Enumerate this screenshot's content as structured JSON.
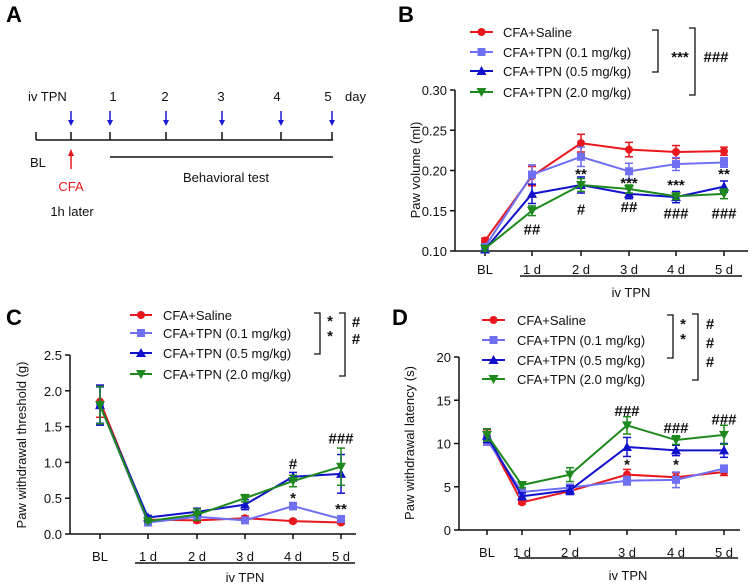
{
  "panels": {
    "a": "A",
    "b": "B",
    "c": "C",
    "d": "D"
  },
  "timeline": {
    "iv_label": "iv TPN",
    "days": [
      "1",
      "2",
      "3",
      "4",
      "5"
    ],
    "day_unit": "day",
    "bl": "BL",
    "cfa": "CFA",
    "cfa_note": "1h later",
    "behavioral": "Behavioral test",
    "colors": {
      "injection_arrow": "#1a1ad6",
      "cfa": "#e8181e"
    }
  },
  "chart_data": [
    {
      "id": "B",
      "type": "line",
      "ylabel": "Paw volume (ml)",
      "xlabel": "iv TPN",
      "categories": [
        "BL",
        "1 d",
        "2 d",
        "3 d",
        "4 d",
        "5 d"
      ],
      "ylim": [
        0.1,
        0.3
      ],
      "yticks": [
        "0.10",
        "0.15",
        "0.20",
        "0.25",
        "0.30"
      ],
      "series": [
        {
          "name": "CFA+Saline",
          "color": "#e8181e",
          "marker": "circle",
          "values": [
            0.113,
            0.193,
            0.234,
            0.226,
            0.223,
            0.224
          ],
          "err": [
            0.003,
            0.012,
            0.011,
            0.009,
            0.008,
            0.005
          ]
        },
        {
          "name": "CFA+TPN (0.1 mg/kg)",
          "color": "#6f6ff2",
          "marker": "square",
          "values": [
            0.105,
            0.195,
            0.217,
            0.199,
            0.208,
            0.21
          ],
          "err": [
            0.003,
            0.012,
            0.012,
            0.01,
            0.008,
            0.006
          ]
        },
        {
          "name": "CFA+TPN (0.5 mg/kg)",
          "color": "#1212cc",
          "marker": "triangle-up",
          "values": [
            0.102,
            0.171,
            0.182,
            0.171,
            0.167,
            0.18
          ],
          "err": [
            0.004,
            0.012,
            0.01,
            0.006,
            0.007,
            0.007
          ]
        },
        {
          "name": "CFA+TPN (2.0 mg/kg)",
          "color": "#1e8a1e",
          "marker": "triangle-down",
          "values": [
            0.103,
            0.15,
            0.182,
            0.177,
            0.168,
            0.171
          ],
          "err": [
            0.003,
            0.006,
            0.008,
            0.005,
            0.004,
            0.006
          ]
        }
      ],
      "legend_brackets": [
        "***",
        "###"
      ],
      "annotations": [
        {
          "text": "##",
          "category": "1 d",
          "y": 0.128
        },
        {
          "text": "**",
          "category": "2 d",
          "y": 0.197
        },
        {
          "text": "#",
          "category": "2 d",
          "y": 0.153
        },
        {
          "text": "***",
          "category": "3 d",
          "y": 0.186
        },
        {
          "text": "##",
          "category": "3 d",
          "y": 0.156
        },
        {
          "text": "***",
          "category": "4 d",
          "y": 0.183
        },
        {
          "text": "###",
          "category": "4 d",
          "y": 0.148
        },
        {
          "text": "**",
          "category": "5 d",
          "y": 0.197
        },
        {
          "text": "###",
          "category": "5 d",
          "y": 0.148
        }
      ]
    },
    {
      "id": "C",
      "type": "line",
      "ylabel": "Paw withdrawal threshold (g)",
      "xlabel": "iv TPN",
      "categories": [
        "BL",
        "1 d",
        "2 d",
        "3 d",
        "4 d",
        "5 d"
      ],
      "ylim": [
        0.0,
        2.5
      ],
      "yticks": [
        "0.0",
        "0.5",
        "1.0",
        "1.5",
        "2.0",
        "2.5"
      ],
      "series": [
        {
          "name": "CFA+Saline",
          "color": "#e8181e",
          "marker": "circle",
          "values": [
            1.85,
            0.2,
            0.19,
            0.22,
            0.18,
            0.16
          ],
          "err": [
            0.22,
            0.03,
            0.03,
            0.03,
            0.02,
            0.02
          ]
        },
        {
          "name": "CFA+TPN (0.1 mg/kg)",
          "color": "#6f6ff2",
          "marker": "square",
          "values": [
            1.8,
            0.16,
            0.24,
            0.19,
            0.39,
            0.21
          ],
          "err": [
            0.25,
            0.02,
            0.04,
            0.03,
            0.05,
            0.03
          ]
        },
        {
          "name": "CFA+TPN (0.5 mg/kg)",
          "color": "#1212cc",
          "marker": "triangle-up",
          "values": [
            1.8,
            0.23,
            0.31,
            0.41,
            0.8,
            0.84
          ],
          "err": [
            0.28,
            0.03,
            0.05,
            0.07,
            0.06,
            0.27
          ]
        },
        {
          "name": "CFA+TPN (2.0 mg/kg)",
          "color": "#1e8a1e",
          "marker": "triangle-down",
          "values": [
            1.8,
            0.18,
            0.27,
            0.5,
            0.74,
            0.94
          ],
          "err": [
            0.26,
            0.02,
            0.08,
            0.05,
            0.08,
            0.26
          ]
        }
      ],
      "legend_brackets": [
        "**",
        "##"
      ],
      "annotations": [
        {
          "text": "#",
          "category": "4 d",
          "y": 0.99
        },
        {
          "text": "*",
          "category": "4 d",
          "y": 0.52
        },
        {
          "text": "###",
          "category": "5 d",
          "y": 1.35
        },
        {
          "text": "**",
          "category": "5 d",
          "y": 0.36
        }
      ]
    },
    {
      "id": "D",
      "type": "line",
      "ylabel": "Paw withdrawal latency (s)",
      "xlabel": "iv TPN",
      "categories": [
        "BL",
        "1 d",
        "2 d",
        "3 d",
        "4 d",
        "5 d"
      ],
      "ylim": [
        0,
        20
      ],
      "yticks": [
        "0",
        "5",
        "10",
        "15",
        "20"
      ],
      "series": [
        {
          "name": "CFA+Saline",
          "color": "#e8181e",
          "marker": "circle",
          "values": [
            10.8,
            3.2,
            4.5,
            6.4,
            6.1,
            6.7
          ],
          "err": [
            0.8,
            0.2,
            0.3,
            0.6,
            0.5,
            0.4
          ]
        },
        {
          "name": "CFA+TPN (0.1 mg/kg)",
          "color": "#6f6ff2",
          "marker": "square",
          "values": [
            10.4,
            4.4,
            4.9,
            5.7,
            5.8,
            7.1
          ],
          "err": [
            0.6,
            0.4,
            0.4,
            0.5,
            0.9,
            0.4
          ]
        },
        {
          "name": "CFA+TPN (0.5 mg/kg)",
          "color": "#1212cc",
          "marker": "triangle-up",
          "values": [
            10.9,
            3.9,
            4.6,
            9.6,
            9.2,
            9.2
          ],
          "err": [
            0.8,
            0.4,
            0.5,
            1.1,
            0.6,
            0.8
          ]
        },
        {
          "name": "CFA+TPN (2.0 mg/kg)",
          "color": "#1e8a1e",
          "marker": "triangle-down",
          "values": [
            11.0,
            5.2,
            6.4,
            12.1,
            10.4,
            11.0
          ],
          "err": [
            0.7,
            0.3,
            0.8,
            1.0,
            0.5,
            1.1
          ]
        }
      ],
      "legend_brackets": [
        "**",
        "###"
      ],
      "annotations": [
        {
          "text": "###",
          "category": "3 d",
          "y": 13.9
        },
        {
          "text": "*",
          "category": "3 d",
          "y": 7.7
        },
        {
          "text": "###",
          "category": "4 d",
          "y": 11.9
        },
        {
          "text": "*",
          "category": "4 d",
          "y": 7.7
        },
        {
          "text": "###",
          "category": "5 d",
          "y": 12.9
        }
      ]
    }
  ]
}
